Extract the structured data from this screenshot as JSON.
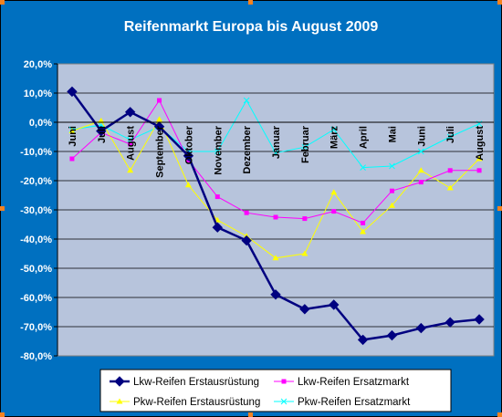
{
  "chart_data": {
    "type": "line",
    "title": "Reifenmarkt Europa bis August 2009",
    "categories": [
      "Juni",
      "Juli",
      "August",
      "September",
      "Oktober",
      "November",
      "Dezember",
      "Januar",
      "Februar",
      "März",
      "April",
      "Mai",
      "Juni",
      "Juli",
      "August"
    ],
    "ylim": [
      -80,
      20
    ],
    "yticks": [
      "20,0%",
      "10,0%",
      "0,0%",
      "-10,0%",
      "-20,0%",
      "-30,0%",
      "-40,0%",
      "-50,0%",
      "-60,0%",
      "-70,0%",
      "-80,0%"
    ],
    "grid": true,
    "legend_position": "bottom",
    "series": [
      {
        "name": "Lkw-Reifen Erstausrüstung",
        "color": "#000080",
        "marker": "diamond",
        "values": [
          10.5,
          -3,
          3.5,
          -1.5,
          -11.5,
          -36,
          -40.5,
          -59,
          -64,
          -62.5,
          -74.5,
          -73,
          -70.5,
          -68.5,
          -67.5
        ]
      },
      {
        "name": "Lkw-Reifen Ersatzmarkt",
        "color": "#ff00ff",
        "marker": "square",
        "values": [
          -12.5,
          -3.5,
          -7.5,
          7.5,
          -13,
          -25.5,
          -31,
          -32.5,
          -33,
          -30.5,
          -34.5,
          -23.5,
          -20.5,
          -16.5,
          -16.5
        ]
      },
      {
        "name": "Pkw-Reifen Erstausrüstung",
        "color": "#ffff00",
        "marker": "triangle",
        "values": [
          -3,
          0.5,
          -16.5,
          1,
          -21.5,
          -33.5,
          -39,
          -46.5,
          -45,
          -24,
          -37.5,
          -28.5,
          -16.5,
          -22.5,
          -12.5
        ]
      },
      {
        "name": "Pkw-Reifen Ersatzmarkt",
        "color": "#00ffff",
        "marker": "x",
        "values": [
          -2.5,
          -1,
          -6,
          -1.5,
          -10,
          -10,
          7.5,
          -10.5,
          -8.5,
          -2.5,
          -15.5,
          -15,
          -10,
          -5,
          -0.5
        ]
      }
    ]
  }
}
